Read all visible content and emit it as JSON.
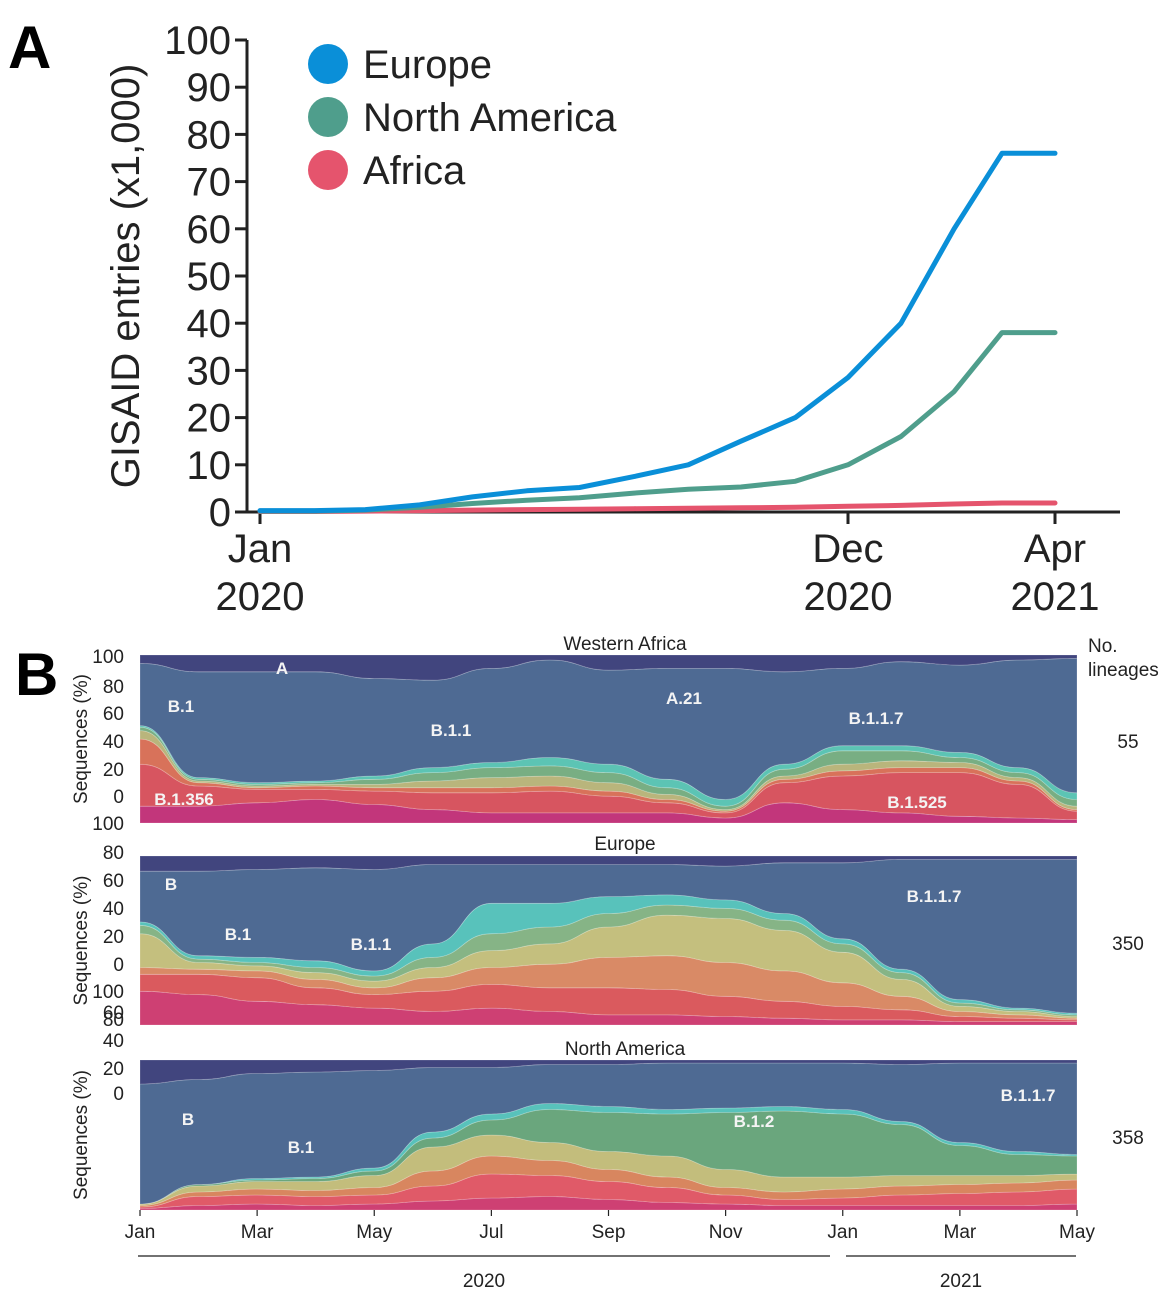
{
  "panel_labels": [
    "A",
    "B"
  ],
  "chart_data": [
    {
      "type": "line",
      "panel": "A",
      "ylabel": "GISAID entries (x1,000)",
      "ylim": [
        0,
        100
      ],
      "yticks": [
        "0",
        "10",
        "20",
        "30",
        "40",
        "50",
        "60",
        "70",
        "80",
        "90",
        "100"
      ],
      "xticks": [
        {
          "month": "Jan",
          "year": "2020",
          "x": "2020-01"
        },
        {
          "month": "Dec",
          "year": "2020",
          "x": "2020-12"
        },
        {
          "month": "Apr",
          "year": "2021",
          "x": "2021-04"
        }
      ],
      "x": [
        "2020-01-01",
        "2020-02-01",
        "2020-03-01",
        "2020-04-01",
        "2020-05-01",
        "2020-06-01",
        "2020-07-01",
        "2020-08-01",
        "2020-09-01",
        "2020-10-01",
        "2020-11-01",
        "2020-12-01",
        "2021-01-01",
        "2021-02-01",
        "2021-03-01",
        "2021-04-01"
      ],
      "series": [
        {
          "name": "Europe",
          "color": "#0a8fd8",
          "values": [
            0.3,
            0.3,
            0.5,
            1.5,
            3.2,
            4.5,
            5.2,
            7.5,
            10,
            15,
            20,
            28.5,
            40,
            60,
            76,
            76
          ]
        },
        {
          "name": "North America",
          "color": "#4f9e8c",
          "values": [
            0.2,
            0.2,
            0.4,
            1.0,
            1.8,
            2.5,
            3.0,
            4.0,
            4.8,
            5.3,
            6.5,
            10,
            16,
            25.5,
            38,
            38
          ]
        },
        {
          "name": "Africa",
          "color": "#e5546d",
          "values": [
            0.1,
            0.1,
            0.2,
            0.3,
            0.4,
            0.5,
            0.6,
            0.7,
            0.8,
            0.9,
            1.0,
            1.2,
            1.4,
            1.7,
            1.9,
            1.9
          ]
        }
      ],
      "legend": "top-left",
      "grid": false
    },
    {
      "type": "area",
      "panel": "B",
      "stacked": true,
      "ylabel": "Sequences (%)",
      "right_header": [
        "No.",
        "lineages"
      ],
      "x_months": [
        "Jan",
        "Mar",
        "May",
        "Jul",
        "Sep",
        "Nov",
        "Jan",
        "Mar",
        "May"
      ],
      "x_years": [
        "2020",
        "2021"
      ],
      "x_index": [
        0,
        2,
        4,
        6,
        8,
        10,
        12,
        14,
        16
      ],
      "subplots": [
        {
          "title": "Western Africa",
          "lineages_count": "55",
          "yticks": [
            "100",
            "80",
            "60",
            "40",
            "20",
            "0"
          ],
          "labels": [
            "A",
            "B.1",
            "B.1.1",
            "A.21",
            "B.1.1.7",
            "B.1.356",
            "B.1.525"
          ],
          "layers": [
            {
              "color": "#c2367b",
              "values": [
                10,
                10,
                12,
                14,
                11,
                8,
                6,
                6,
                6,
                6,
                3,
                12,
                8,
                6,
                4,
                3,
                2
              ]
            },
            {
              "color": "#d75560",
              "values": [
                25,
                12,
                8,
                6,
                8,
                10,
                12,
                13,
                10,
                6,
                3,
                12,
                20,
                24,
                26,
                20,
                5
              ]
            },
            {
              "color": "#d8725a",
              "values": [
                15,
                2,
                1,
                2,
                2,
                3,
                3,
                3,
                3,
                2,
                1,
                2,
                3,
                3,
                3,
                2,
                1
              ]
            },
            {
              "color": "#b9b57c",
              "values": [
                5,
                1,
                1,
                1,
                2,
                4,
                6,
                6,
                5,
                3,
                1,
                2,
                4,
                4,
                3,
                2,
                2
              ]
            },
            {
              "color": "#78ae83",
              "values": [
                2,
                1,
                1,
                1,
                3,
                5,
                6,
                6,
                6,
                4,
                2,
                4,
                8,
                6,
                3,
                3,
                4
              ]
            },
            {
              "color": "#5cc4b4",
              "values": [
                1,
                1,
                1,
                1,
                2,
                3,
                3,
                5,
                5,
                5,
                4,
                3,
                3,
                3,
                3,
                3,
                4
              ]
            },
            {
              "color": "#4e6a93",
              "values": [
                37,
                63,
                66,
                65,
                58,
                52,
                56,
                58,
                56,
                66,
                78,
                55,
                46,
                50,
                52,
                64,
                80
              ]
            },
            {
              "color": "#41457e",
              "values": [
                5,
                10,
                10,
                10,
                14,
                15,
                8,
                3,
                9,
                8,
                8,
                10,
                8,
                4,
                6,
                3,
                2
              ]
            }
          ]
        },
        {
          "title": "Europe",
          "lineages_count": "350",
          "yticks": [
            "100",
            "80",
            "60",
            "40",
            "20",
            "0"
          ],
          "labels": [
            "B",
            "B.1",
            "B.1.1",
            "B.1.1.7"
          ],
          "layers": [
            {
              "color": "#ce4073",
              "values": [
                20,
                18,
                14,
                12,
                10,
                8,
                10,
                8,
                6,
                6,
                5,
                4,
                3,
                3,
                2,
                2,
                2
              ]
            },
            {
              "color": "#da5a5e",
              "values": [
                10,
                12,
                14,
                10,
                8,
                12,
                14,
                14,
                16,
                15,
                12,
                10,
                8,
                6,
                3,
                2,
                1
              ]
            },
            {
              "color": "#d98a66",
              "values": [
                4,
                3,
                4,
                5,
                4,
                8,
                10,
                14,
                18,
                20,
                20,
                18,
                14,
                8,
                3,
                2,
                1
              ]
            },
            {
              "color": "#c4bf7e",
              "values": [
                20,
                4,
                3,
                4,
                4,
                6,
                10,
                12,
                18,
                24,
                26,
                24,
                18,
                10,
                3,
                2,
                1
              ]
            },
            {
              "color": "#86b486",
              "values": [
                5,
                2,
                2,
                3,
                3,
                6,
                10,
                10,
                8,
                6,
                6,
                6,
                5,
                4,
                2,
                1,
                1
              ]
            },
            {
              "color": "#58c2bb",
              "values": [
                2,
                2,
                3,
                4,
                3,
                8,
                18,
                14,
                10,
                6,
                5,
                4,
                3,
                2,
                2,
                1,
                1
              ]
            },
            {
              "color": "#4e6a93",
              "values": [
                30,
                50,
                52,
                55,
                60,
                47,
                23,
                23,
                19,
                18,
                20,
                30,
                45,
                65,
                83,
                88,
                91
              ]
            },
            {
              "color": "#41457e",
              "values": [
                9,
                9,
                8,
                7,
                8,
                5,
                5,
                5,
                5,
                5,
                6,
                4,
                4,
                2,
                2,
                2,
                2
              ]
            }
          ]
        },
        {
          "title": "North America",
          "lineages_count": "358",
          "yticks": [
            "100",
            "80",
            "60",
            "40",
            "20",
            "0"
          ],
          "labels": [
            "B",
            "B.1",
            "B.1.2",
            "B.1.1.7"
          ],
          "layers": [
            {
              "color": "#ce4073",
              "values": [
                1,
                3,
                4,
                3,
                4,
                6,
                8,
                9,
                7,
                5,
                4,
                3,
                3,
                3,
                3,
                3,
                4
              ]
            },
            {
              "color": "#e05a68",
              "values": [
                1,
                6,
                6,
                6,
                6,
                10,
                16,
                14,
                12,
                10,
                6,
                4,
                5,
                7,
                8,
                9,
                10
              ]
            },
            {
              "color": "#d8865f",
              "values": [
                1,
                3,
                4,
                4,
                5,
                10,
                12,
                10,
                8,
                7,
                5,
                5,
                6,
                6,
                6,
                6,
                6
              ]
            },
            {
              "color": "#c3bd7c",
              "values": [
                1,
                4,
                5,
                6,
                8,
                16,
                14,
                12,
                12,
                14,
                12,
                10,
                8,
                7,
                6,
                5,
                4
              ]
            },
            {
              "color": "#6aa67d",
              "values": [
                0,
                1,
                1,
                2,
                3,
                6,
                10,
                22,
                26,
                28,
                38,
                44,
                42,
                34,
                20,
                14,
                12
              ]
            },
            {
              "color": "#58c2bb",
              "values": [
                0,
                0,
                1,
                1,
                2,
                4,
                4,
                4,
                4,
                3,
                3,
                3,
                3,
                2,
                2,
                2,
                1
              ]
            },
            {
              "color": "#4e6a93",
              "values": [
                80,
                70,
                70,
                70,
                65,
                43,
                31,
                26,
                28,
                31,
                30,
                29,
                31,
                38,
                53,
                59,
                61
              ]
            },
            {
              "color": "#41457e",
              "values": [
                16,
                13,
                9,
                8,
                7,
                5,
                5,
                3,
                3,
                2,
                2,
                2,
                2,
                3,
                2,
                2,
                2
              ]
            }
          ]
        }
      ]
    }
  ]
}
